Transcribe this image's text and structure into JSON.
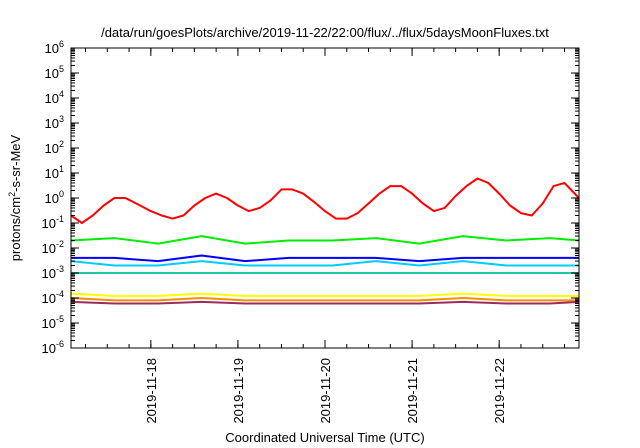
{
  "chart_data": {
    "type": "line",
    "title": "/data/run/goesPlots/archive/2019-11-22/22:00/flux/../flux/5daysMoonFluxes.txt",
    "xlabel": "Coordinated Universal Time (UTC)",
    "ylabel": {
      "prefix": "protons/cm",
      "superscript": "2",
      "suffix": "-s-sr-MeV"
    },
    "y_scale": "log",
    "ylim": [
      1e-06,
      1000000
    ],
    "y_ticks": [
      {
        "base": "10",
        "exp": "-6"
      },
      {
        "base": "10",
        "exp": "-5"
      },
      {
        "base": "10",
        "exp": "-4"
      },
      {
        "base": "10",
        "exp": "-3"
      },
      {
        "base": "10",
        "exp": "-2"
      },
      {
        "base": "10",
        "exp": "-1"
      },
      {
        "base": "10",
        "exp": "0"
      },
      {
        "base": "10",
        "exp": "1"
      },
      {
        "base": "10",
        "exp": "2"
      },
      {
        "base": "10",
        "exp": "3"
      },
      {
        "base": "10",
        "exp": "4"
      },
      {
        "base": "10",
        "exp": "5"
      },
      {
        "base": "10",
        "exp": "6"
      }
    ],
    "xlim": [
      "2019-11-17 02:00",
      "2019-11-22 22:00"
    ],
    "x_ticks": [
      "2019-11-18",
      "2019-11-19",
      "2019-11-20",
      "2019-11-21",
      "2019-11-22"
    ],
    "grid": false,
    "legend": "none",
    "series": [
      {
        "color": "#ff0000",
        "points": [
          [
            "2019-11-17 02:00",
            0.2
          ],
          [
            "2019-11-17 05:00",
            0.1
          ],
          [
            "2019-11-17 08:00",
            0.2
          ],
          [
            "2019-11-17 11:00",
            0.5
          ],
          [
            "2019-11-17 14:00",
            1.0
          ],
          [
            "2019-11-17 17:00",
            1.0
          ],
          [
            "2019-11-17 20:00",
            0.6
          ],
          [
            "2019-11-18 00:00",
            0.3
          ],
          [
            "2019-11-18 03:00",
            0.2
          ],
          [
            "2019-11-18 06:00",
            0.15
          ],
          [
            "2019-11-18 09:00",
            0.2
          ],
          [
            "2019-11-18 12:00",
            0.5
          ],
          [
            "2019-11-18 15:00",
            1.0
          ],
          [
            "2019-11-18 18:00",
            1.5
          ],
          [
            "2019-11-18 21:00",
            1.0
          ],
          [
            "2019-11-19 00:00",
            0.5
          ],
          [
            "2019-11-19 03:00",
            0.3
          ],
          [
            "2019-11-19 06:00",
            0.4
          ],
          [
            "2019-11-19 09:00",
            0.8
          ],
          [
            "2019-11-19 12:00",
            2.2
          ],
          [
            "2019-11-19 15:00",
            2.2
          ],
          [
            "2019-11-19 18:00",
            1.5
          ],
          [
            "2019-11-19 21:00",
            0.7
          ],
          [
            "2019-11-20 00:00",
            0.3
          ],
          [
            "2019-11-20 03:00",
            0.15
          ],
          [
            "2019-11-20 06:00",
            0.15
          ],
          [
            "2019-11-20 09:00",
            0.25
          ],
          [
            "2019-11-20 12:00",
            0.6
          ],
          [
            "2019-11-20 15:00",
            1.5
          ],
          [
            "2019-11-20 18:00",
            3.0
          ],
          [
            "2019-11-20 21:00",
            3.0
          ],
          [
            "2019-11-21 00:00",
            1.5
          ],
          [
            "2019-11-21 03:00",
            0.6
          ],
          [
            "2019-11-21 06:00",
            0.3
          ],
          [
            "2019-11-21 09:00",
            0.4
          ],
          [
            "2019-11-21 12:00",
            1.2
          ],
          [
            "2019-11-21 15:00",
            3.0
          ],
          [
            "2019-11-21 18:00",
            6.0
          ],
          [
            "2019-11-21 21:00",
            4.0
          ],
          [
            "2019-11-22 00:00",
            1.5
          ],
          [
            "2019-11-22 03:00",
            0.5
          ],
          [
            "2019-11-22 06:00",
            0.25
          ],
          [
            "2019-11-22 09:00",
            0.2
          ],
          [
            "2019-11-22 12:00",
            0.6
          ],
          [
            "2019-11-22 15:00",
            3.0
          ],
          [
            "2019-11-22 18:00",
            4.0
          ],
          [
            "2019-11-22 22:00",
            1.0
          ]
        ]
      },
      {
        "color": "#00ee00",
        "points": [
          [
            "2019-11-17 02:00",
            0.02
          ],
          [
            "2019-11-17 14:00",
            0.025
          ],
          [
            "2019-11-18 02:00",
            0.015
          ],
          [
            "2019-11-18 14:00",
            0.03
          ],
          [
            "2019-11-19 02:00",
            0.015
          ],
          [
            "2019-11-19 14:00",
            0.02
          ],
          [
            "2019-11-20 02:00",
            0.02
          ],
          [
            "2019-11-20 14:00",
            0.025
          ],
          [
            "2019-11-21 02:00",
            0.015
          ],
          [
            "2019-11-21 14:00",
            0.03
          ],
          [
            "2019-11-22 02:00",
            0.02
          ],
          [
            "2019-11-22 14:00",
            0.025
          ],
          [
            "2019-11-22 22:00",
            0.02
          ]
        ]
      },
      {
        "color": "#0000ff",
        "points": [
          [
            "2019-11-17 02:00",
            0.004
          ],
          [
            "2019-11-17 14:00",
            0.004
          ],
          [
            "2019-11-18 02:00",
            0.003
          ],
          [
            "2019-11-18 14:00",
            0.005
          ],
          [
            "2019-11-19 02:00",
            0.003
          ],
          [
            "2019-11-19 14:00",
            0.004
          ],
          [
            "2019-11-20 02:00",
            0.004
          ],
          [
            "2019-11-20 14:00",
            0.004
          ],
          [
            "2019-11-21 02:00",
            0.003
          ],
          [
            "2019-11-21 14:00",
            0.004
          ],
          [
            "2019-11-22 02:00",
            0.004
          ],
          [
            "2019-11-22 14:00",
            0.004
          ],
          [
            "2019-11-22 22:00",
            0.004
          ]
        ]
      },
      {
        "color": "#00ccff",
        "points": [
          [
            "2019-11-17 02:00",
            0.003
          ],
          [
            "2019-11-17 14:00",
            0.002
          ],
          [
            "2019-11-18 02:00",
            0.002
          ],
          [
            "2019-11-18 14:00",
            0.003
          ],
          [
            "2019-11-19 02:00",
            0.002
          ],
          [
            "2019-11-19 14:00",
            0.002
          ],
          [
            "2019-11-20 02:00",
            0.002
          ],
          [
            "2019-11-20 14:00",
            0.003
          ],
          [
            "2019-11-21 02:00",
            0.002
          ],
          [
            "2019-11-21 14:00",
            0.003
          ],
          [
            "2019-11-22 02:00",
            0.002
          ],
          [
            "2019-11-22 14:00",
            0.002
          ],
          [
            "2019-11-22 22:00",
            0.002
          ]
        ]
      },
      {
        "color": "#1fc9a8",
        "points": [
          [
            "2019-11-17 02:00",
            0.001
          ],
          [
            "2019-11-17 14:00",
            0.001
          ],
          [
            "2019-11-18 02:00",
            0.001
          ],
          [
            "2019-11-18 14:00",
            0.001
          ],
          [
            "2019-11-19 02:00",
            0.001
          ],
          [
            "2019-11-19 14:00",
            0.001
          ],
          [
            "2019-11-20 02:00",
            0.001
          ],
          [
            "2019-11-20 14:00",
            0.001
          ],
          [
            "2019-11-21 02:00",
            0.001
          ],
          [
            "2019-11-21 14:00",
            0.001
          ],
          [
            "2019-11-22 02:00",
            0.001
          ],
          [
            "2019-11-22 14:00",
            0.001
          ],
          [
            "2019-11-22 22:00",
            0.001
          ]
        ]
      },
      {
        "color": "#ffff00",
        "points": [
          [
            "2019-11-17 02:00",
            0.00015
          ],
          [
            "2019-11-17 14:00",
            0.00012
          ],
          [
            "2019-11-18 02:00",
            0.00012
          ],
          [
            "2019-11-18 14:00",
            0.00015
          ],
          [
            "2019-11-19 02:00",
            0.00012
          ],
          [
            "2019-11-19 14:00",
            0.00012
          ],
          [
            "2019-11-20 02:00",
            0.00012
          ],
          [
            "2019-11-20 14:00",
            0.00012
          ],
          [
            "2019-11-21 02:00",
            0.00012
          ],
          [
            "2019-11-21 14:00",
            0.00015
          ],
          [
            "2019-11-22 02:00",
            0.00012
          ],
          [
            "2019-11-22 14:00",
            0.00012
          ],
          [
            "2019-11-22 22:00",
            0.00012
          ]
        ]
      },
      {
        "color": "#ff8c00",
        "points": [
          [
            "2019-11-17 02:00",
            0.0001
          ],
          [
            "2019-11-17 14:00",
            8e-05
          ],
          [
            "2019-11-18 02:00",
            8e-05
          ],
          [
            "2019-11-18 14:00",
            0.0001
          ],
          [
            "2019-11-19 02:00",
            8e-05
          ],
          [
            "2019-11-19 14:00",
            8e-05
          ],
          [
            "2019-11-20 02:00",
            8e-05
          ],
          [
            "2019-11-20 14:00",
            8e-05
          ],
          [
            "2019-11-21 02:00",
            8e-05
          ],
          [
            "2019-11-21 14:00",
            0.0001
          ],
          [
            "2019-11-22 02:00",
            8e-05
          ],
          [
            "2019-11-22 14:00",
            8e-05
          ],
          [
            "2019-11-22 22:00",
            8e-05
          ]
        ]
      },
      {
        "color": "#9b2d5e",
        "points": [
          [
            "2019-11-17 02:00",
            7e-05
          ],
          [
            "2019-11-17 14:00",
            6e-05
          ],
          [
            "2019-11-18 02:00",
            6e-05
          ],
          [
            "2019-11-18 14:00",
            7e-05
          ],
          [
            "2019-11-19 02:00",
            6e-05
          ],
          [
            "2019-11-19 14:00",
            6e-05
          ],
          [
            "2019-11-20 02:00",
            6e-05
          ],
          [
            "2019-11-20 14:00",
            6e-05
          ],
          [
            "2019-11-21 02:00",
            6e-05
          ],
          [
            "2019-11-21 14:00",
            7e-05
          ],
          [
            "2019-11-22 02:00",
            6e-05
          ],
          [
            "2019-11-22 14:00",
            6e-05
          ],
          [
            "2019-11-22 22:00",
            7e-05
          ]
        ]
      }
    ]
  }
}
